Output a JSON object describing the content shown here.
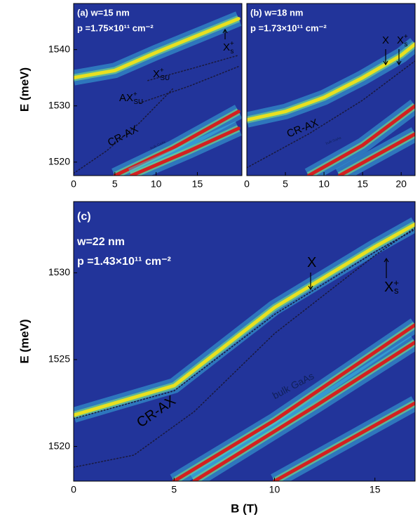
{
  "chart_data": [
    {
      "type": "line",
      "label": "(a) w=15 nm",
      "density": "p =1.75×10¹¹ cm⁻²",
      "y_label": "E (meV)",
      "background": "#22349a",
      "xlim": [
        0,
        20.4
      ],
      "ylim": [
        1517.6,
        1548.2
      ],
      "xticks": [
        0,
        5,
        10,
        15
      ],
      "yticks": [
        1520,
        1530,
        1540
      ],
      "annotations": [
        {
          "text": "X",
          "sub": "s",
          "sup": "+"
        },
        {
          "text": "X",
          "sub": "SU",
          "sup": "+"
        },
        {
          "text": "AX",
          "sub": "SU",
          "sup": "+"
        },
        {
          "text": "CR-AX"
        },
        {
          "text": "bulk GaAs"
        }
      ],
      "series": [
        {
          "x": [
            0,
            5,
            10,
            15,
            20
          ],
          "values": [
            1535,
            1536.3,
            1539.5,
            1542.5,
            1545.5
          ],
          "color": "#e8e020"
        },
        {
          "x": [
            9,
            14,
            20
          ],
          "values": [
            1534.5,
            1536.5,
            1539
          ],
          "color": "#1a1a40",
          "dash": true
        },
        {
          "x": [
            8,
            14,
            20
          ],
          "values": [
            1530.5,
            1533.5,
            1537
          ],
          "color": "#1a1a40",
          "dash": true
        },
        {
          "x": [
            0,
            4,
            8,
            12
          ],
          "values": [
            1518,
            1522,
            1527,
            1533
          ],
          "color": "#1a1a40",
          "dash": true
        },
        {
          "x": [
            5,
            12,
            20
          ],
          "values": [
            1517.6,
            1522.5,
            1529
          ],
          "color": "#d42020"
        },
        {
          "x": [
            7,
            14,
            20
          ],
          "values": [
            1517.6,
            1522,
            1526
          ],
          "color": "#d42020"
        }
      ]
    },
    {
      "type": "line",
      "label": "(b) w=18 nm",
      "density": "p =1.73×10¹¹ cm⁻²",
      "background": "#22349a",
      "xlim": [
        0,
        21.8
      ],
      "ylim": [
        1517.6,
        1548.2
      ],
      "xticks": [
        0,
        5,
        10,
        15,
        20
      ],
      "annotations": [
        {
          "text": "X"
        },
        {
          "text": "X",
          "sub": "s",
          "sup": "+"
        },
        {
          "text": "CR-AX"
        },
        {
          "text": "bulk GaAs"
        }
      ],
      "series": [
        {
          "x": [
            0,
            5,
            10,
            15,
            20,
            21.8
          ],
          "values": [
            1527.5,
            1529,
            1531.5,
            1535,
            1539,
            1541
          ],
          "color": "#e8e020"
        },
        {
          "x": [
            0,
            8,
            15,
            21.8
          ],
          "values": [
            1519,
            1525,
            1531,
            1538
          ],
          "color": "#1a1a40",
          "dash": true
        },
        {
          "x": [
            8,
            15,
            21.8
          ],
          "values": [
            1517.6,
            1523,
            1530
          ],
          "color": "#d42020"
        },
        {
          "x": [
            12,
            21.8
          ],
          "values": [
            1517.6,
            1525
          ],
          "color": "#d42020"
        }
      ]
    },
    {
      "type": "line",
      "label": "(c)",
      "label2": "w=22 nm",
      "density": "p =1.43×10¹¹ cm⁻²",
      "y_label": "E (meV)",
      "x_label": "B (T)",
      "background": "#22349a",
      "xlim": [
        0,
        17
      ],
      "ylim": [
        1518,
        1534.1
      ],
      "xticks": [
        0,
        5,
        10,
        15
      ],
      "yticks": [
        1520,
        1525,
        1530
      ],
      "annotations": [
        {
          "text": "X"
        },
        {
          "text": "X",
          "sub": "s",
          "sup": "+"
        },
        {
          "text": "CR-AX"
        },
        {
          "text": "bulk GaAs"
        }
      ],
      "series": [
        {
          "x": [
            0,
            5,
            10,
            15,
            17
          ],
          "values": [
            1521.8,
            1523.5,
            1528,
            1531.5,
            1532.8
          ],
          "color": "#e8e020"
        },
        {
          "x": [
            0,
            5,
            10,
            15,
            17
          ],
          "values": [
            1521.6,
            1523.2,
            1527.6,
            1531.2,
            1532.5
          ],
          "color": "#1a1a40",
          "dash": true
        },
        {
          "x": [
            0,
            3,
            6,
            10,
            15,
            17
          ],
          "values": [
            1518.8,
            1519.5,
            1522,
            1526.5,
            1531,
            1532.6
          ],
          "color": "#1a1a40",
          "dash": true
        },
        {
          "x": [
            5,
            10,
            17
          ],
          "values": [
            1518,
            1521.5,
            1527
          ],
          "color": "#d42020"
        },
        {
          "x": [
            6,
            12,
            17
          ],
          "values": [
            1518,
            1522.3,
            1526
          ],
          "color": "#d42020"
        },
        {
          "x": [
            10,
            17
          ],
          "values": [
            1518,
            1522.5
          ],
          "color": "#d42020"
        }
      ]
    }
  ]
}
